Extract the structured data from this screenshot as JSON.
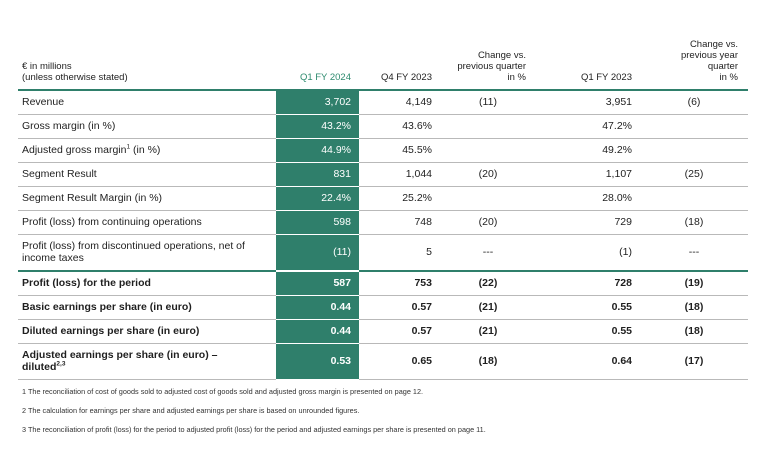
{
  "header": {
    "label": "€ in millions\n(unless otherwise stated)",
    "label_line1": "€ in millions",
    "label_line2": "(unless otherwise stated)",
    "q1fy2024": "Q1 FY 2024",
    "q4fy2023": "Q4 FY 2023",
    "change_prev_quarter_l1": "Change vs.",
    "change_prev_quarter_l2": "previous quarter",
    "change_prev_quarter_l3": "in %",
    "q1fy2023": "Q1 FY 2023",
    "change_prev_year_l1": "Change vs.",
    "change_prev_year_l2": "previous year",
    "change_prev_year_l3": "quarter",
    "change_prev_year_l4": "in %"
  },
  "rows": [
    {
      "label": "Revenue",
      "q1fy2024": "3,702",
      "q4fy2023": "4,149",
      "chg_q": "(11)",
      "q1fy2023": "3,951",
      "chg_y": "(6)"
    },
    {
      "label": "Gross margin (in %)",
      "q1fy2024": "43.2%",
      "q4fy2023": "43.6%",
      "chg_q": "",
      "q1fy2023": "47.2%",
      "chg_y": ""
    },
    {
      "label": "Adjusted gross margin",
      "sup": "1",
      "label_suffix": " (in %)",
      "q1fy2024": "44.9%",
      "q4fy2023": "45.5%",
      "chg_q": "",
      "q1fy2023": "49.2%",
      "chg_y": ""
    },
    {
      "label": "Segment Result",
      "q1fy2024": "831",
      "q4fy2023": "1,044",
      "chg_q": "(20)",
      "q1fy2023": "1,107",
      "chg_y": "(25)"
    },
    {
      "label": "Segment Result Margin (in %)",
      "q1fy2024": "22.4%",
      "q4fy2023": "25.2%",
      "chg_q": "",
      "q1fy2023": "28.0%",
      "chg_y": ""
    },
    {
      "label": "Profit (loss) from continuing operations",
      "q1fy2024": "598",
      "q4fy2023": "748",
      "chg_q": "(20)",
      "q1fy2023": "729",
      "chg_y": "(18)"
    },
    {
      "label": "Profit (loss) from discontinued operations, net of income taxes",
      "q1fy2024": "(11)",
      "q4fy2023": "5",
      "chg_q": "---",
      "q1fy2023": "(1)",
      "chg_y": "---"
    },
    {
      "label": "Profit (loss) for the period",
      "q1fy2024": "587",
      "q4fy2023": "753",
      "chg_q": "(22)",
      "q1fy2023": "728",
      "chg_y": "(19)"
    },
    {
      "label": "Basic earnings per share (in euro)",
      "q1fy2024": "0.44",
      "q4fy2023": "0.57",
      "chg_q": "(21)",
      "q1fy2023": "0.55",
      "chg_y": "(18)"
    },
    {
      "label": "Diluted earnings per share (in euro)",
      "q1fy2024": "0.44",
      "q4fy2023": "0.57",
      "chg_q": "(21)",
      "q1fy2023": "0.55",
      "chg_y": "(18)"
    },
    {
      "label": "Adjusted earnings per share (in euro) –\ndiluted",
      "sup": "2,3",
      "q1fy2024": "0.53",
      "q4fy2023": "0.65",
      "chg_q": "(18)",
      "q1fy2023": "0.64",
      "chg_y": "(17)"
    }
  ],
  "notes": [
    "1 The reconciliation of cost of goods sold to adjusted cost of goods sold and adjusted gross margin is presented on page 12.",
    "2 The calculation for earnings per share and adjusted earnings per share is based on unrounded figures.",
    "3 The reconciliation of profit (loss) for the period to adjusted profit (loss) for the period and adjusted earnings per share is presented on page 11."
  ],
  "colors": {
    "accent": "#2f7f6b",
    "accent_text": "#2e8b6f"
  }
}
